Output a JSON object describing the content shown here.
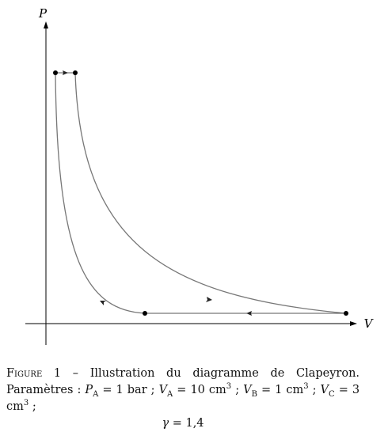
{
  "figure": {
    "y_axis_label": "P",
    "x_axis_label": "V"
  },
  "caption": {
    "label": "Figure 1",
    "text": "– Illustration du diagramme de Clapeyron. Paramètres :",
    "params": [
      {
        "symbol": "P",
        "sub": "A",
        "value": "= 1 bar",
        "sep": ";"
      },
      {
        "symbol": "V",
        "sub": "A",
        "value": "= 10 cm",
        "exp": "3",
        "sep": ";"
      },
      {
        "symbol": "V",
        "sub": "B",
        "value": "= 1 cm",
        "exp": "3",
        "sep": ";"
      },
      {
        "symbol": "V",
        "sub": "C",
        "value": "= 3 cm",
        "exp": "3",
        "sep": ";"
      }
    ],
    "last": {
      "symbol": "γ",
      "value": "= 1,4"
    }
  }
}
